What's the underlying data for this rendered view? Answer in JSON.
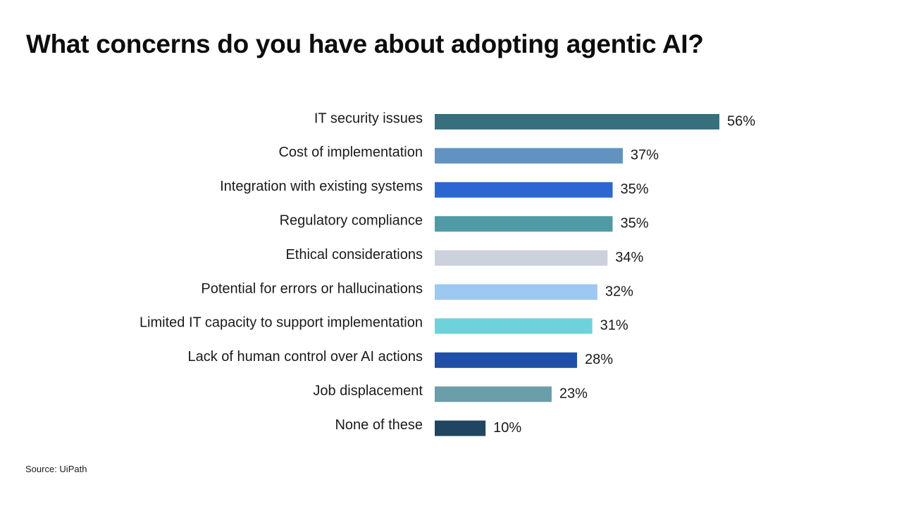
{
  "title": "What concerns do you have about adopting agentic AI?",
  "source": "Source: UiPath",
  "chart_data": {
    "type": "bar",
    "orientation": "horizontal",
    "categories": [
      "IT security issues",
      "Cost of implementation",
      "Integration with existing systems",
      "Regulatory compliance",
      "Ethical considerations",
      "Potential for errors or hallucinations",
      "Limited IT capacity to support implementation",
      "Lack of human control over AI actions",
      "Job displacement",
      "None of these"
    ],
    "values": [
      56,
      37,
      35,
      35,
      34,
      32,
      31,
      28,
      23,
      10
    ],
    "value_labels": [
      "56%",
      "37%",
      "35%",
      "35%",
      "34%",
      "32%",
      "31%",
      "28%",
      "23%",
      "10%"
    ],
    "colors": [
      "#35707c",
      "#6192c0",
      "#2c66d2",
      "#4f9aa4",
      "#cbd2dc",
      "#9cc8f2",
      "#6dd3da",
      "#1f4fa6",
      "#6a9ea9",
      "#204560"
    ],
    "unit": "%",
    "xlim": [
      0,
      56
    ],
    "grid": false,
    "legend": "none"
  }
}
